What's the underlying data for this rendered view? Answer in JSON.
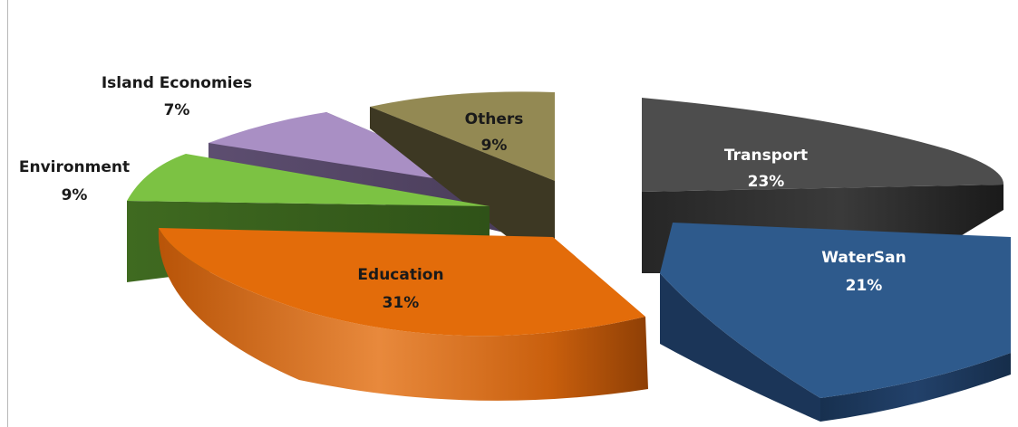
{
  "chart_data": {
    "type": "pie",
    "title": "",
    "categories": [
      "Transport",
      "WaterSan",
      "Education",
      "Environment",
      "Island Economies",
      "Others"
    ],
    "values": [
      23,
      21,
      31,
      9,
      7,
      9
    ],
    "value_labels": [
      "23%",
      "21%",
      "31%",
      "9%",
      "7%",
      "9%"
    ],
    "unit": "%",
    "style": "3d-exploded",
    "legend": "none",
    "colors": {
      "Transport": "#4d4d4d",
      "WaterSan": "#2e5a8c",
      "Education": "#e36c0a",
      "Environment": "#7cc243",
      "Island Economies": "#a98fc4",
      "Others": "#938953"
    }
  }
}
